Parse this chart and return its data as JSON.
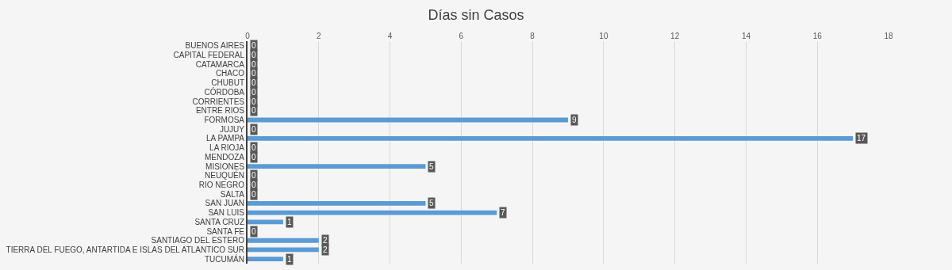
{
  "chart_data": {
    "type": "bar",
    "orientation": "horizontal",
    "title": "Días sin Casos",
    "categories": [
      "BUENOS AIRES",
      "CAPITAL FEDERAL",
      "CATAMARCA",
      "CHACO",
      "CHUBUT",
      "CÓRDOBA",
      "CORRIENTES",
      "ENTRE RIOS",
      "FORMOSA",
      "JUJUY",
      "LA PAMPA",
      "LA RIOJA",
      "MENDOZA",
      "MISIONES",
      "NEUQUÉN",
      "RIO NEGRO",
      "SALTA",
      "SAN JUAN",
      "SAN LUIS",
      "SANTA CRUZ",
      "SANTA FE",
      "SANTIAGO DEL ESTERO",
      "TIERRA DEL FUEGO, ANTARTIDA E ISLAS DEL ATLANTICO SUR",
      "TUCUMÁN"
    ],
    "values": [
      0,
      0,
      0,
      0,
      0,
      0,
      0,
      0,
      9,
      0,
      17,
      0,
      0,
      5,
      0,
      0,
      0,
      5,
      7,
      1,
      0,
      2,
      2,
      1
    ],
    "color": "#5b9bd5",
    "xlim": [
      0,
      18
    ],
    "xticks": [
      0,
      2,
      4,
      6,
      8,
      10,
      12,
      14,
      16,
      18
    ],
    "grid": "x",
    "data_labels": true
  }
}
